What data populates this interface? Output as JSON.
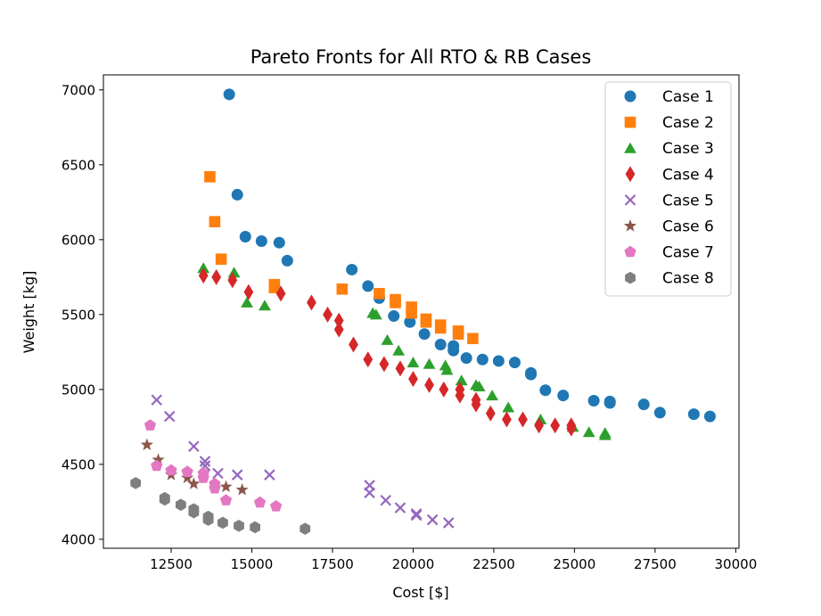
{
  "chart_data": {
    "type": "scatter",
    "title": "Pareto Fronts for All RTO & RB Cases",
    "xlabel": "Cost [$]",
    "ylabel": "Weight [kg]",
    "xlim": [
      10400,
      30100
    ],
    "ylim": [
      3940,
      7100
    ],
    "xticks": [
      12500,
      15000,
      17500,
      20000,
      22500,
      25000,
      27500,
      30000
    ],
    "yticks": [
      4000,
      4500,
      5000,
      5500,
      6000,
      6500,
      7000
    ],
    "grid": false,
    "legend_position": "top-right",
    "series": [
      {
        "name": "Case 1",
        "marker": "circle",
        "color": "#1f77b4",
        "x": [
          14300,
          14550,
          14800,
          15300,
          15850,
          16100,
          18100,
          18600,
          18950,
          19400,
          19900,
          20350,
          20850,
          21250,
          21250,
          21650,
          22150,
          22650,
          23150,
          23650,
          23650,
          24100,
          24650,
          25600,
          26100,
          26100,
          27150,
          27650,
          28700,
          29200
        ],
        "y": [
          6970,
          6300,
          6020,
          5990,
          5980,
          5860,
          5800,
          5690,
          5610,
          5490,
          5450,
          5370,
          5300,
          5290,
          5260,
          5210,
          5200,
          5190,
          5180,
          5110,
          5100,
          4995,
          4960,
          4925,
          4920,
          4910,
          4900,
          4845,
          4835,
          4820
        ]
      },
      {
        "name": "Case 2",
        "marker": "square",
        "color": "#ff7f0e",
        "x": [
          13700,
          13850,
          14050,
          15700,
          15700,
          17800,
          18950,
          19450,
          19450,
          19950,
          19950,
          20400,
          20400,
          20850,
          20850,
          21400,
          21400,
          21850
        ],
        "y": [
          6420,
          6120,
          5870,
          5700,
          5680,
          5670,
          5640,
          5600,
          5580,
          5550,
          5510,
          5470,
          5450,
          5430,
          5410,
          5390,
          5370,
          5340
        ]
      },
      {
        "name": "Case 3",
        "marker": "triangle",
        "color": "#2ca02c",
        "x": [
          13500,
          14450,
          14850,
          15400,
          18750,
          18850,
          19200,
          19550,
          20000,
          20500,
          21000,
          21050,
          21500,
          21950,
          22050,
          22450,
          22950,
          23950,
          24950,
          25450,
          25950,
          25950
        ],
        "y": [
          5810,
          5780,
          5580,
          5560,
          5510,
          5500,
          5330,
          5260,
          5180,
          5170,
          5160,
          5130,
          5060,
          5030,
          5020,
          4960,
          4880,
          4800,
          4750,
          4715,
          4710,
          4695
        ],
        "marker_label": ""
      },
      {
        "name": "Case 4",
        "marker": "thin_diamond",
        "color": "#d62728",
        "x": [
          13500,
          13900,
          14400,
          14900,
          15900,
          16850,
          17350,
          17700,
          17700,
          18150,
          18600,
          19100,
          19600,
          20000,
          20500,
          20950,
          21450,
          21450,
          21950,
          21950,
          22400,
          22900,
          23400,
          23900,
          24400,
          24900,
          24900
        ],
        "y": [
          5760,
          5750,
          5730,
          5650,
          5640,
          5580,
          5500,
          5460,
          5400,
          5300,
          5200,
          5170,
          5140,
          5070,
          5030,
          5000,
          5000,
          4960,
          4930,
          4900,
          4840,
          4800,
          4800,
          4760,
          4760,
          4760,
          4740
        ]
      },
      {
        "name": "Case 5",
        "marker": "x",
        "color": "#9467bd",
        "x": [
          12050,
          12450,
          13200,
          13550,
          13550,
          13950,
          14550,
          15550,
          18650,
          18650,
          19150,
          19600,
          20100,
          20100,
          20600,
          21100
        ],
        "y": [
          4930,
          4820,
          4620,
          4520,
          4490,
          4440,
          4430,
          4430,
          4360,
          4310,
          4260,
          4210,
          4170,
          4160,
          4130,
          4110
        ]
      },
      {
        "name": "Case 6",
        "marker": "star",
        "color": "#8c564b",
        "x": [
          11750,
          12100,
          12500,
          13000,
          13200,
          14200,
          14700
        ],
        "y": [
          4630,
          4530,
          4430,
          4410,
          4370,
          4350,
          4330
        ]
      },
      {
        "name": "Case 7",
        "marker": "pentagon",
        "color": "#e377c2",
        "x": [
          11850,
          12050,
          12500,
          13000,
          13500,
          13500,
          13850,
          13850,
          14200,
          15250,
          15750
        ],
        "y": [
          4760,
          4490,
          4460,
          4450,
          4440,
          4410,
          4370,
          4340,
          4260,
          4245,
          4220
        ]
      },
      {
        "name": "Case 8",
        "marker": "hexagon",
        "color": "#7f7f7f",
        "x": [
          11400,
          12300,
          12300,
          12800,
          13200,
          13200,
          13650,
          13650,
          14100,
          14600,
          15100,
          16650
        ],
        "y": [
          4375,
          4275,
          4265,
          4230,
          4200,
          4180,
          4150,
          4130,
          4110,
          4090,
          4080,
          4070
        ]
      }
    ]
  }
}
